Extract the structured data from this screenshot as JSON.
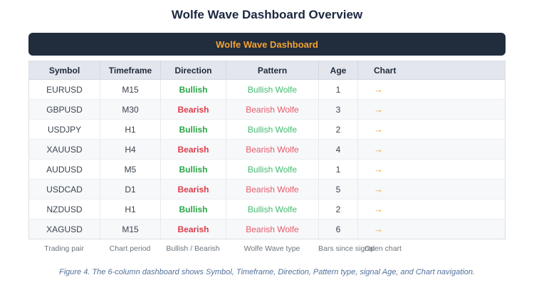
{
  "page": {
    "title": "Wolfe Wave Dashboard Overview",
    "caption": "Figure 4. The 6-column dashboard shows Symbol, Timeframe, Direction, Pattern type, signal Age, and Chart navigation."
  },
  "dashboard": {
    "title": "Wolfe Wave Dashboard",
    "columns": [
      "Symbol",
      "Timeframe",
      "Direction",
      "Pattern",
      "Age",
      "Chart"
    ],
    "column_descriptions": [
      "Trading pair",
      "Chart period",
      "Bullish / Bearish",
      "Wolfe Wave type",
      "Bars since signal",
      "Open chart"
    ],
    "chart_link_icon": "→",
    "rows": [
      {
        "symbol": "EURUSD",
        "timeframe": "M15",
        "direction": "Bullish",
        "pattern": "Bullish Wolfe",
        "age": "1"
      },
      {
        "symbol": "GBPUSD",
        "timeframe": "M30",
        "direction": "Bearish",
        "pattern": "Bearish Wolfe",
        "age": "3"
      },
      {
        "symbol": "USDJPY",
        "timeframe": "H1",
        "direction": "Bullish",
        "pattern": "Bullish Wolfe",
        "age": "2"
      },
      {
        "symbol": "XAUUSD",
        "timeframe": "H4",
        "direction": "Bearish",
        "pattern": "Bearish Wolfe",
        "age": "4"
      },
      {
        "symbol": "AUDUSD",
        "timeframe": "M5",
        "direction": "Bullish",
        "pattern": "Bullish Wolfe",
        "age": "1"
      },
      {
        "symbol": "USDCAD",
        "timeframe": "D1",
        "direction": "Bearish",
        "pattern": "Bearish Wolfe",
        "age": "5"
      },
      {
        "symbol": "NZDUSD",
        "timeframe": "H1",
        "direction": "Bullish",
        "pattern": "Bullish Wolfe",
        "age": "2"
      },
      {
        "symbol": "XAGUSD",
        "timeframe": "M15",
        "direction": "Bearish",
        "pattern": "Bearish Wolfe",
        "age": "6"
      }
    ],
    "colors": {
      "header_bar_bg": "#212c3d",
      "accent_orange": "#f2a231",
      "bullish_green": "#28a745",
      "bearish_red": "#dd3b4b",
      "header_row_bg": "#e3e7ed",
      "caption_blue": "#54719c"
    }
  }
}
